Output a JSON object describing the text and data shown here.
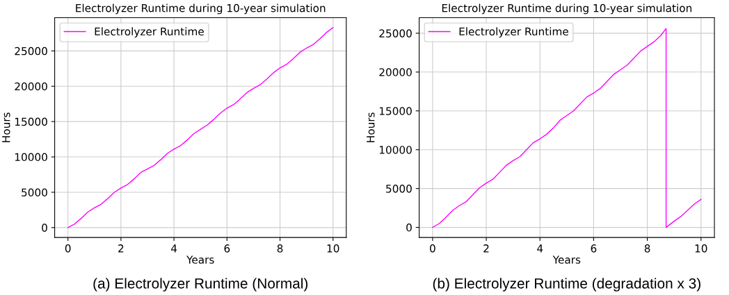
{
  "chart_data": [
    {
      "type": "line",
      "title": "Electrolyzer Runtime during 10-year simulation",
      "xlabel": "Years",
      "ylabel": "Hours",
      "annotations": [
        "(a) Electrolyzer Runtime (Normal)"
      ],
      "xlim": [
        -0.5,
        10.5
      ],
      "ylim": [
        -1400,
        29700
      ],
      "xticks": [
        0,
        2,
        4,
        6,
        8,
        10
      ],
      "yticks": [
        0,
        5000,
        10000,
        15000,
        20000,
        25000
      ],
      "grid": true,
      "legend": "top left",
      "series": [
        {
          "name": "Electrolyzer Runtime",
          "color": "#ff00ff",
          "x": [
            0,
            0.25,
            0.5,
            0.75,
            1,
            1.25,
            1.5,
            1.75,
            2,
            2.25,
            2.5,
            2.75,
            3,
            3.25,
            3.5,
            3.75,
            4,
            4.25,
            4.5,
            4.75,
            5,
            5.25,
            5.5,
            5.75,
            6,
            6.25,
            6.5,
            6.75,
            7,
            7.25,
            7.5,
            7.75,
            8,
            8.25,
            8.5,
            8.75,
            9,
            9.25,
            9.5,
            9.75,
            10
          ],
          "values": [
            0,
            500,
            1300,
            2200,
            2800,
            3300,
            4100,
            5000,
            5600,
            6100,
            6900,
            7800,
            8300,
            8800,
            9600,
            10500,
            11100,
            11600,
            12400,
            13300,
            13900,
            14500,
            15300,
            16200,
            16900,
            17400,
            18200,
            19100,
            19700,
            20200,
            21000,
            21900,
            22600,
            23100,
            23900,
            24800,
            25400,
            25900,
            26700,
            27600,
            28300
          ]
        }
      ]
    },
    {
      "type": "line",
      "title": "Electrolyzer Runtime during 10-year simulation",
      "xlabel": "Years",
      "ylabel": "Hours",
      "annotations": [
        "(b) Electrolyzer Runtime (degradation x 3)"
      ],
      "xlim": [
        -0.5,
        10.5
      ],
      "ylim": [
        -1300,
        27000
      ],
      "xticks": [
        0,
        2,
        4,
        6,
        8,
        10
      ],
      "yticks": [
        0,
        5000,
        10000,
        15000,
        20000,
        25000
      ],
      "grid": true,
      "legend": "top left",
      "series": [
        {
          "name": "Electrolyzer Runtime",
          "color": "#ff00ff",
          "x": [
            0,
            0.25,
            0.5,
            0.75,
            1,
            1.25,
            1.5,
            1.75,
            2,
            2.25,
            2.5,
            2.75,
            3,
            3.25,
            3.5,
            3.75,
            4,
            4.25,
            4.5,
            4.75,
            5,
            5.25,
            5.5,
            5.75,
            6,
            6.25,
            6.5,
            6.75,
            7,
            7.25,
            7.5,
            7.75,
            8,
            8.25,
            8.5,
            8.7,
            8.7,
            9,
            9.25,
            9.5,
            9.75,
            10
          ],
          "values": [
            0,
            500,
            1300,
            2200,
            2800,
            3300,
            4200,
            5100,
            5700,
            6200,
            7100,
            8000,
            8600,
            9100,
            10000,
            10900,
            11400,
            12000,
            12800,
            13800,
            14400,
            15000,
            15900,
            16800,
            17300,
            17900,
            18800,
            19700,
            20300,
            20900,
            21800,
            22700,
            23300,
            23900,
            24700,
            25600,
            0,
            800,
            1400,
            2200,
            3000,
            3600
          ]
        }
      ]
    }
  ]
}
